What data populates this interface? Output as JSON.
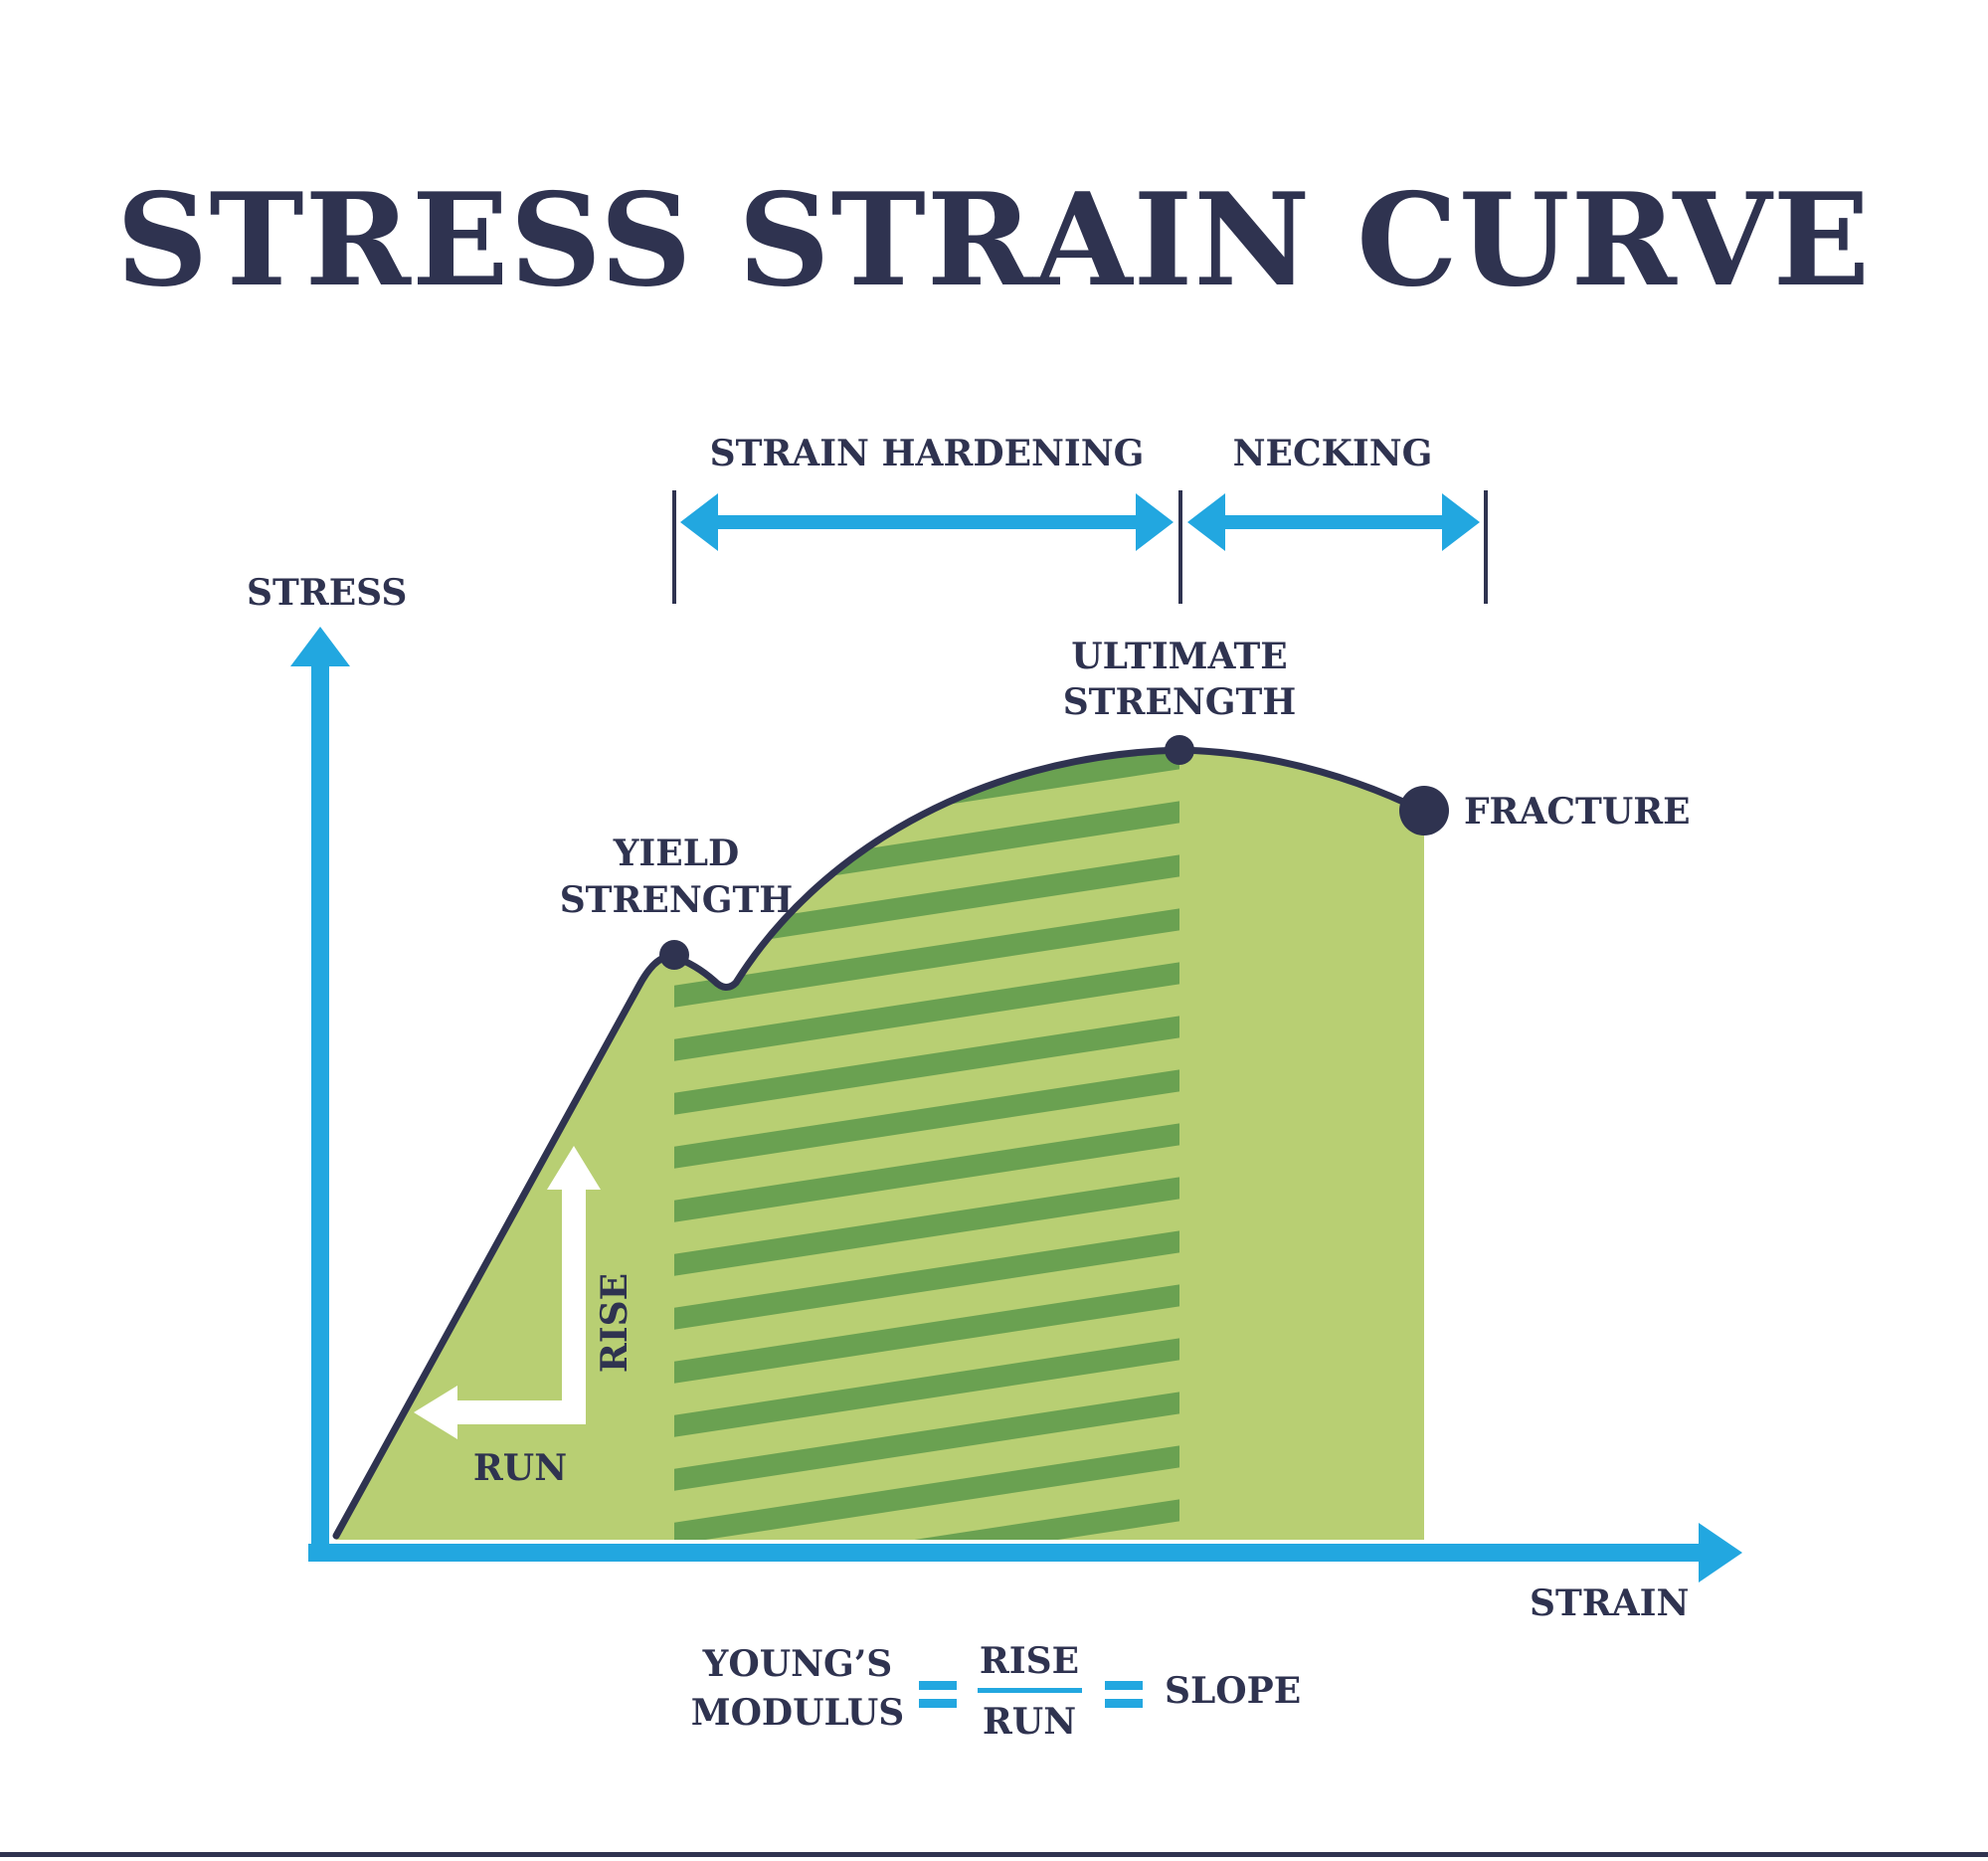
{
  "title": "STRESS STRAIN CURVE",
  "axes": {
    "y_label": "STRESS",
    "x_label": "STRAIN"
  },
  "regions": {
    "strain_hardening": "STRAIN HARDENING",
    "necking": "NECKING"
  },
  "points": {
    "yield_line1": "YIELD",
    "yield_line2": "STRENGTH",
    "ultimate_line1": "ULTIMATE",
    "ultimate_line2": "STRENGTH",
    "fracture": "FRACTURE"
  },
  "slope_triangle": {
    "rise": "RISE",
    "run": "RUN"
  },
  "formula": {
    "lhs_line1": "YOUNG’S",
    "lhs_line2": "MODULUS",
    "numerator": "RISE",
    "denominator": "RUN",
    "rhs": "SLOPE"
  },
  "colors": {
    "navy": "#2f3350",
    "blue": "#22a7e0",
    "light_green": "#b8cf73",
    "dark_green": "#6aa151",
    "white": "#ffffff"
  }
}
